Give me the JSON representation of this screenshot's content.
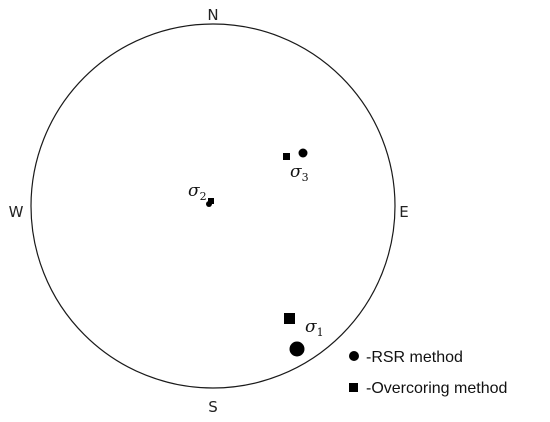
{
  "directions": {
    "north": "N",
    "south": "S",
    "east": "E",
    "west": "W"
  },
  "stress_labels": {
    "sigma1": {
      "symbol": "σ",
      "subscript": "1"
    },
    "sigma2": {
      "symbol": "σ",
      "subscript": "2"
    },
    "sigma3": {
      "symbol": "σ",
      "subscript": "3"
    }
  },
  "legend": {
    "rsr": {
      "marker": "circle-marker",
      "label": "-RSR method"
    },
    "overcoring": {
      "marker": "square-marker",
      "label": "-Overcoring method"
    }
  },
  "colors": {
    "marker": "#000000",
    "outline": "#1a1a1a"
  }
}
